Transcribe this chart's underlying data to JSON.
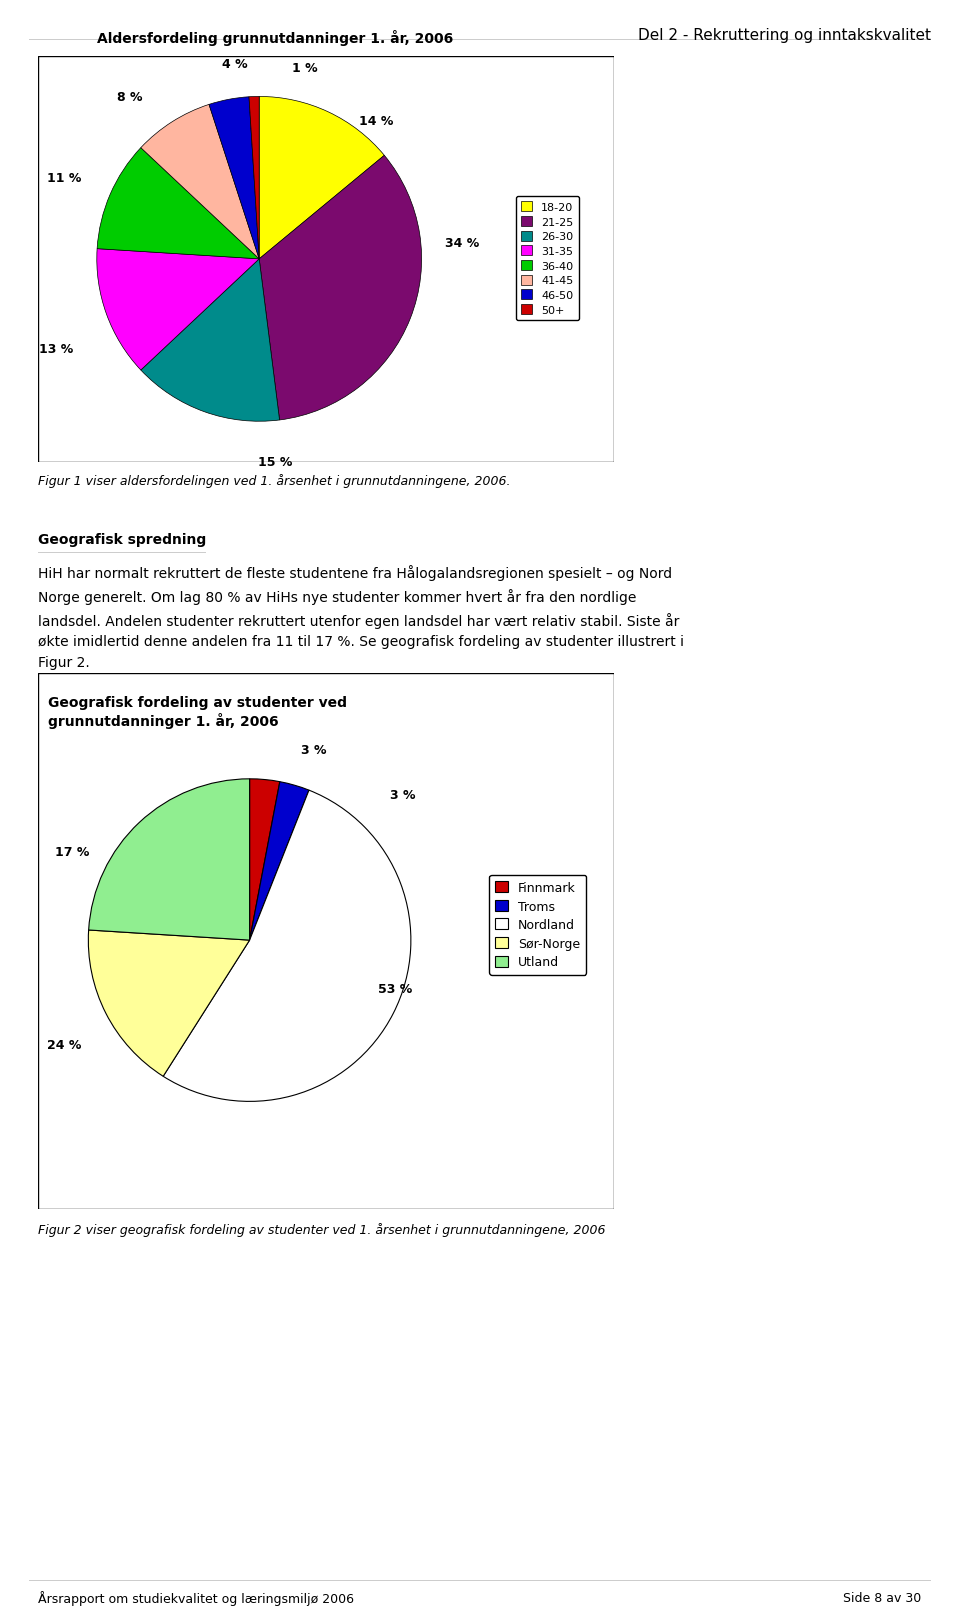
{
  "page_header": "Del 2 - Rekruttering og inntakskvalitet",
  "page_footer_left": "Årsrapport om studiekvalitet og læringsmiljø 2006",
  "page_footer_right": "Side 8 av 30",
  "chart1_title": "Aldersfordeling grunnutdanninger 1. år, 2006",
  "chart1_labels": [
    "18-20",
    "21-25",
    "26-30",
    "31-35",
    "36-40",
    "41-45",
    "46-50",
    "50+"
  ],
  "chart1_values": [
    14,
    34,
    15,
    13,
    11,
    8,
    4,
    1
  ],
  "chart1_colors": [
    "#FFFF00",
    "#7B0A6E",
    "#008B8B",
    "#FF00FF",
    "#00CC00",
    "#FFB6A0",
    "#0000CD",
    "#CC0000"
  ],
  "chart1_startangle": 90,
  "chart2_title": "Geografisk fordeling av studenter ved\ngrunnutdanninger 1. år, 2006",
  "chart2_labels": [
    "Finnmark",
    "Troms",
    "Nordland",
    "Sør-Norge",
    "Utland"
  ],
  "chart2_values": [
    3,
    3,
    53,
    17,
    24
  ],
  "chart2_colors": [
    "#CC0000",
    "#0000CD",
    "#FFFFFF",
    "#FFFF99",
    "#90EE90"
  ],
  "chart2_startangle": 90,
  "fig1_caption": "Figur 1 viser aldersfordelingen ved 1. årsenhet i grunnutdanningene, 2006.",
  "fig2_caption": "Figur 2 viser geografisk fordeling av studenter ved 1. årsenhet i grunnutdanningene, 2006",
  "geo_heading": "Geografisk spredning",
  "geo_text_line1": "HiH har normalt rekruttert de fleste studentene fra Hålogalandsregionen spesielt – og Nord",
  "geo_text_line2": "Norge generelt. Om lag 80 % av HiHs nye studenter kommer hvert år fra den nordlige",
  "geo_text_line3": "landsdel. Andelen studenter rekruttert utenfor egen landsdel har vært relativ stabil. Siste år",
  "geo_text_line4": "økte imidlertid denne andelen fra 11 til 17 %. Se geografisk fordeling av studenter illustrert i",
  "geo_text_line5": "Figur 2."
}
